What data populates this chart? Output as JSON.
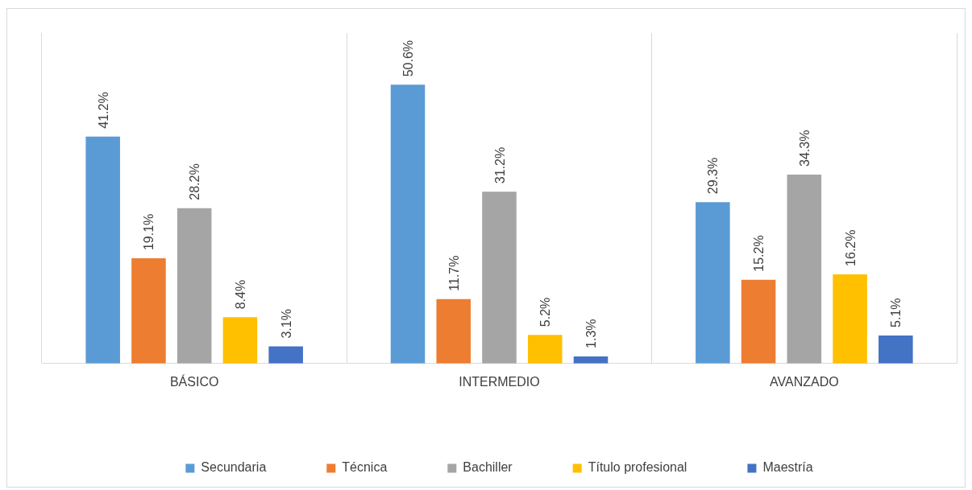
{
  "chart_data": {
    "type": "bar",
    "categories": [
      "BÁSICO",
      "INTERMEDIO",
      "AVANZADO"
    ],
    "series": [
      {
        "name": "Secundaria",
        "color": "#5b9bd5",
        "values": [
          41.2,
          50.6,
          29.3
        ],
        "value_labels": [
          "41.2%",
          "50.6%",
          "29.3%"
        ]
      },
      {
        "name": "Técnica",
        "color": "#ed7d31",
        "values": [
          19.1,
          11.7,
          15.2
        ],
        "value_labels": [
          "19.1%",
          "11.7%",
          "15.2%"
        ]
      },
      {
        "name": "Bachiller",
        "color": "#a5a5a5",
        "values": [
          28.2,
          31.2,
          34.3
        ],
        "value_labels": [
          "28.2%",
          "31.2%",
          "34.3%"
        ]
      },
      {
        "name": "Título profesional",
        "color": "#ffc000",
        "values": [
          8.4,
          5.2,
          16.2
        ],
        "value_labels": [
          "8.4%",
          "5.2%",
          "16.2%"
        ]
      },
      {
        "name": "Maestría",
        "color": "#4472c4",
        "values": [
          3.1,
          1.3,
          5.1
        ],
        "value_labels": [
          "3.1%",
          "1.3%",
          "5.1%"
        ]
      }
    ],
    "grid": "x",
    "legend": "bottom",
    "tick_labels": "x"
  }
}
